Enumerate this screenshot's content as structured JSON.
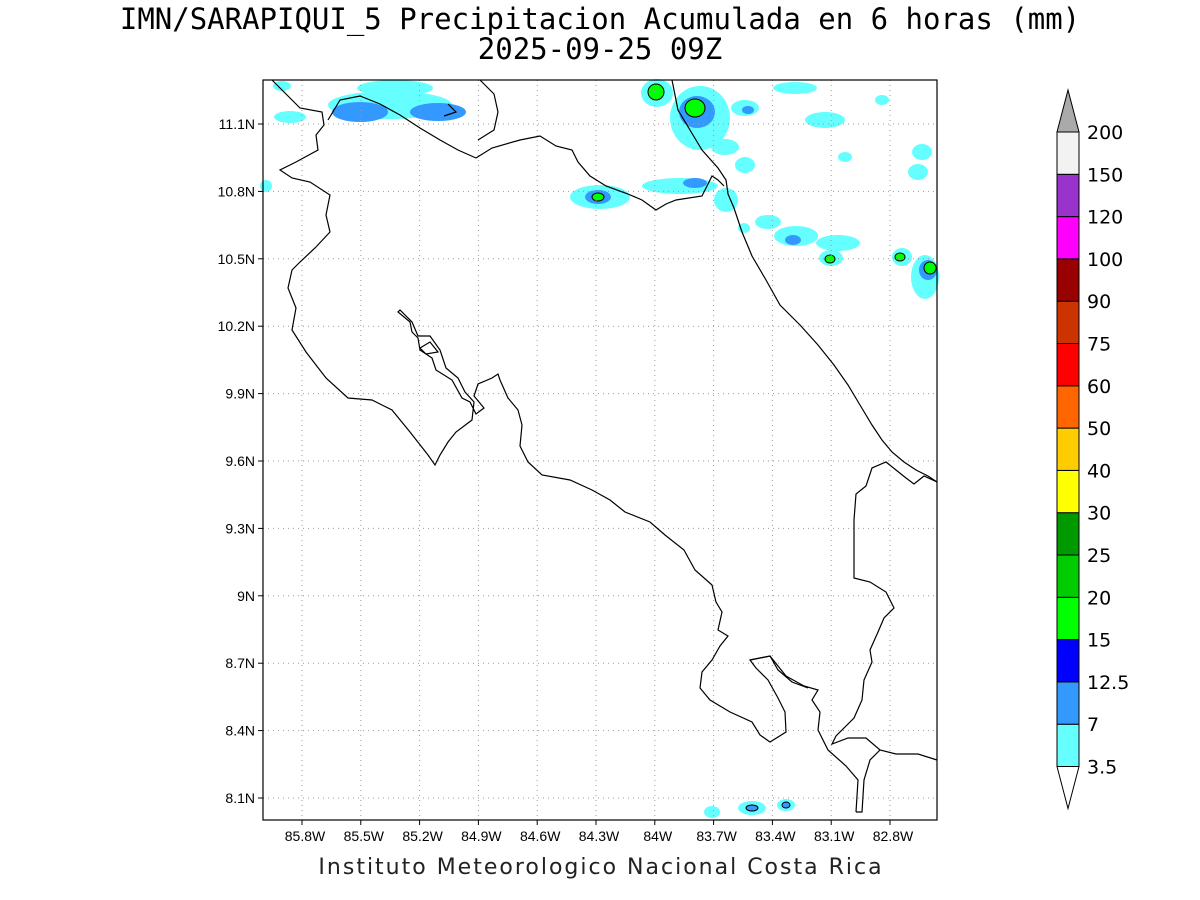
{
  "title": {
    "line1": "IMN/SARAPIQUI_5 Precipitacion Acumulada en 6 horas (mm)",
    "line2": "2025-09-25 09Z"
  },
  "credit": "Instituto Meteorologico Nacional Costa Rica",
  "map": {
    "lon_range": [
      -86.0,
      -83.0
    ],
    "lat_range": [
      8.0,
      11.2
    ],
    "grid": "dotted",
    "lon_ticks": [
      "85.8W",
      "85.5W",
      "85.2W",
      "84.9W",
      "84.6W",
      "84.3W",
      "84W",
      "83.7W",
      "83.4W",
      "83.1W",
      "82.8W"
    ],
    "lat_ticks": [
      "11.1N",
      "10.8N",
      "10.5N",
      "10.2N",
      "9.9N",
      "9.6N",
      "9.3N",
      "9N",
      "8.7N",
      "8.4N",
      "8.1N"
    ]
  },
  "colorbar": {
    "labels": [
      "3.5",
      "7",
      "12.5",
      "15",
      "20",
      "25",
      "30",
      "40",
      "50",
      "60",
      "75",
      "90",
      "100",
      "120",
      "150",
      "200"
    ],
    "colors": [
      "#ffffff",
      "#66ffff",
      "#3399ff",
      "#0000ff",
      "#00ff00",
      "#00cc00",
      "#009900",
      "#ffff00",
      "#ffcc00",
      "#ff6600",
      "#ff0000",
      "#cc3300",
      "#990000",
      "#ff00ff",
      "#9933cc",
      "#f2f2f2",
      "#aaaaaa"
    ]
  }
}
